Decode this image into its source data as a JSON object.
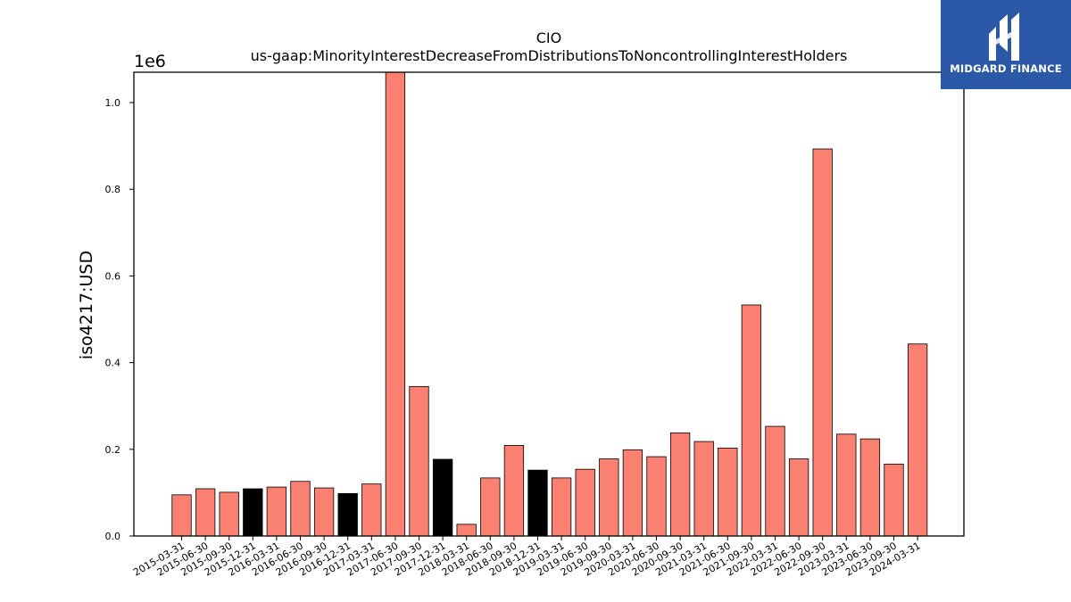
{
  "chart_data": {
    "type": "bar",
    "title": "CIO",
    "subtitle": "us-gaap:MinorityInterestDecreaseFromDistributionsToNoncontrollingInterestHolders",
    "ylabel": "iso4217:USD",
    "xlabel": "",
    "scale_label": "1e6",
    "ylim": [
      0,
      1070000
    ],
    "yticks": [
      0.0,
      0.2,
      0.4,
      0.6,
      0.8,
      1.0
    ],
    "ytick_labels": [
      "0.0",
      "0.2",
      "0.4",
      "0.6",
      "0.8",
      "1.0"
    ],
    "categories": [
      "2015-03-31",
      "2015-06-30",
      "2015-09-30",
      "2015-12-31",
      "2016-03-31",
      "2016-06-30",
      "2016-09-30",
      "2016-12-31",
      "2017-03-31",
      "2017-06-30",
      "2017-09-30",
      "2017-12-31",
      "2018-03-31",
      "2018-06-30",
      "2018-09-30",
      "2018-12-31",
      "2019-03-31",
      "2019-06-30",
      "2019-09-30",
      "2020-03-31",
      "2020-06-30",
      "2020-09-30",
      "2021-03-31",
      "2021-06-30",
      "2021-09-30",
      "2022-03-31",
      "2022-06-30",
      "2022-09-30",
      "2023-03-31",
      "2023-06-30",
      "2023-09-30",
      "2024-03-31"
    ],
    "values": [
      95000,
      109000,
      101000,
      109000,
      113000,
      126000,
      111000,
      98000,
      120000,
      1070000,
      345000,
      177000,
      27000,
      134000,
      209000,
      152000,
      134000,
      154000,
      178000,
      199000,
      183000,
      238000,
      218000,
      203000,
      533000,
      253000,
      178000,
      893000,
      235000,
      224000,
      166000,
      443000
    ],
    "highlight_indices": [
      3,
      7,
      11,
      15
    ],
    "colors": {
      "bar": "#fa8072",
      "highlight": "#000000",
      "edge": "#000000"
    }
  },
  "logo": {
    "text": "MIDGARD FINANCE",
    "bg": "#2b59a8"
  }
}
